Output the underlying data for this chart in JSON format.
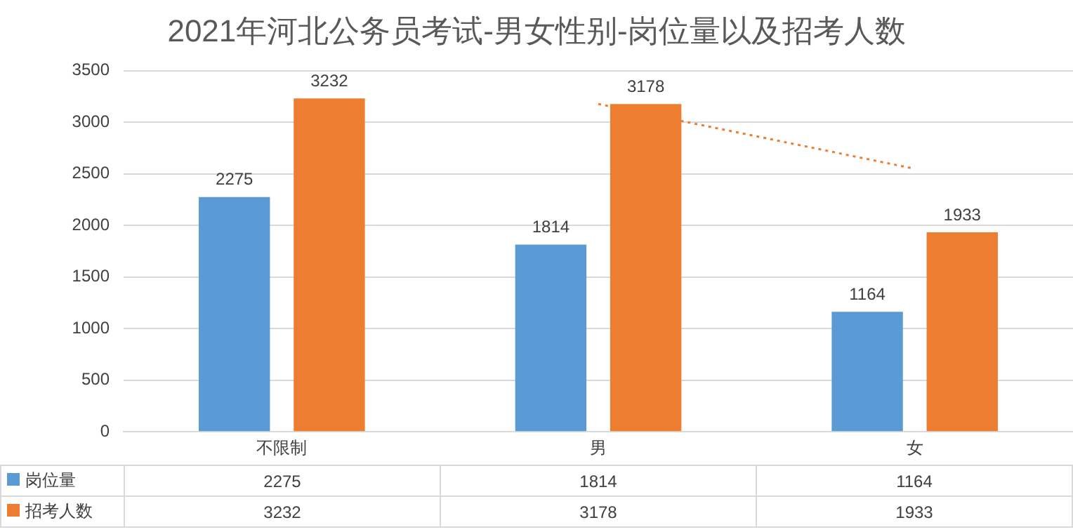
{
  "chart_data": {
    "type": "bar",
    "title": "2021年河北公务员考试-男女性别-岗位量以及招考人数",
    "categories": [
      "不限制",
      "男",
      "女"
    ],
    "series": [
      {
        "name": "岗位量",
        "color": "#5b9bd5",
        "values": [
          2275,
          1814,
          1164
        ],
        "value_labels": [
          "2275",
          "1814",
          "1164"
        ]
      },
      {
        "name": "招考人数",
        "color": "#ed7d31",
        "values": [
          3232,
          3178,
          1933
        ],
        "value_labels": [
          "3232",
          "3178",
          "1933"
        ]
      },
      {
        "type": "line",
        "color": "#ed7d31",
        "x": [
          "男",
          "女"
        ],
        "values": [
          3178,
          2550
        ],
        "line_style": "dotted",
        "marker": "none"
      }
    ],
    "ylim": [
      0,
      3500
    ],
    "yticks": [
      0,
      500,
      1000,
      1500,
      2000,
      2500,
      3000,
      3500
    ],
    "grid": "y",
    "legend": "bottom"
  }
}
